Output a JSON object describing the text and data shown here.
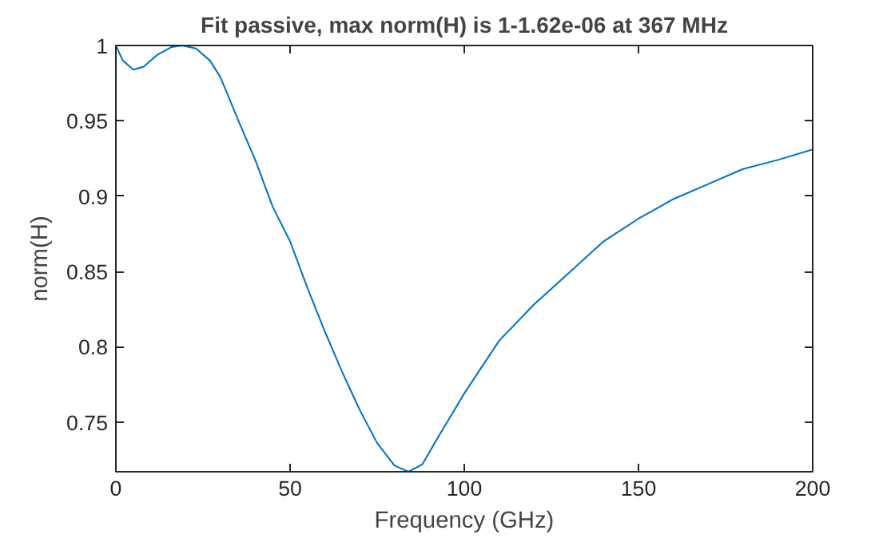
{
  "chart_data": {
    "type": "line",
    "title": "Fit passive, max norm(H) is 1-1.62e-06 at 367 MHz",
    "xlabel": "Frequency (GHz)",
    "ylabel": "norm(H)",
    "x": [
      0,
      2,
      5,
      8,
      12,
      16,
      19,
      23,
      27,
      30,
      35,
      40,
      45,
      50,
      55,
      60,
      65,
      70,
      75,
      80,
      84,
      88,
      92,
      100,
      110,
      120,
      130,
      140,
      150,
      160,
      170,
      180,
      190,
      200
    ],
    "series": [
      {
        "color": "#0072bd",
        "values": [
          1.0,
          0.99,
          0.984,
          0.986,
          0.994,
          0.999,
          1.0,
          0.998,
          0.99,
          0.979,
          0.951,
          0.924,
          0.893,
          0.87,
          0.839,
          0.81,
          0.783,
          0.758,
          0.736,
          0.721,
          0.717,
          0.722,
          0.738,
          0.769,
          0.804,
          0.828,
          0.849,
          0.87,
          0.885,
          0.898,
          0.908,
          0.918,
          0.924,
          0.931
        ]
      }
    ],
    "xlim": [
      0,
      200
    ],
    "xticks": [
      0,
      50,
      100,
      150,
      200
    ],
    "ylim": [
      0.717,
      1
    ],
    "yticks": [
      0.75,
      0.8,
      0.85,
      0.9,
      0.95,
      1
    ],
    "grid": false,
    "marker": "none",
    "line_style": "solid"
  }
}
